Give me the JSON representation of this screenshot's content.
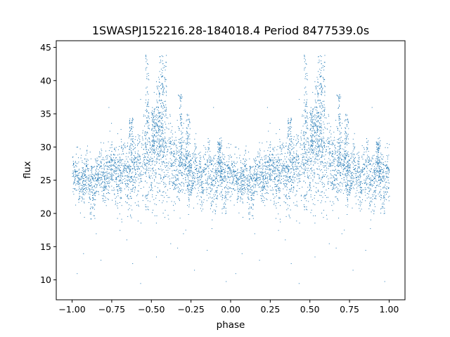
{
  "chart_data": {
    "type": "scatter",
    "title": "1SWASPJ152216.28-184018.4 Period 8477539.0s",
    "xlabel": "phase",
    "ylabel": "flux",
    "xlim": [
      -1.1,
      1.1
    ],
    "ylim": [
      7,
      46
    ],
    "xticks": [
      -1.0,
      -0.75,
      -0.5,
      -0.25,
      0.0,
      0.25,
      0.5,
      0.75,
      1.0
    ],
    "xtick_labels": [
      "−1.00",
      "−0.75",
      "−0.50",
      "−0.25",
      "0.00",
      "0.25",
      "0.50",
      "0.75",
      "1.00"
    ],
    "yticks": [
      10,
      15,
      20,
      25,
      30,
      35,
      40,
      45
    ],
    "ytick_labels": [
      "10",
      "15",
      "20",
      "25",
      "30",
      "35",
      "40",
      "45"
    ],
    "grid": false,
    "marker_color": "#1f77b4",
    "series": [
      {
        "profile": [
          {
            "x": 0.0,
            "y": 25.0,
            "spread": 1.6
          },
          {
            "x": 0.05,
            "y": 25.5,
            "spread": 1.6
          },
          {
            "x": 0.1,
            "y": 24.5,
            "spread": 1.8
          },
          {
            "x": 0.15,
            "y": 25.5,
            "spread": 1.7
          },
          {
            "x": 0.2,
            "y": 26.0,
            "spread": 1.8
          },
          {
            "x": 0.25,
            "y": 26.5,
            "spread": 2.3
          },
          {
            "x": 0.3,
            "y": 26.0,
            "spread": 2.4
          },
          {
            "x": 0.35,
            "y": 26.5,
            "spread": 2.5
          },
          {
            "x": 0.4,
            "y": 26.5,
            "spread": 2.7
          },
          {
            "x": 0.45,
            "y": 28.5,
            "spread": 3.0
          },
          {
            "x": 0.5,
            "y": 28.0,
            "spread": 3.4
          },
          {
            "x": 0.55,
            "y": 30.0,
            "spread": 4.3
          },
          {
            "x": 0.6,
            "y": 28.0,
            "spread": 3.4
          },
          {
            "x": 0.65,
            "y": 27.0,
            "spread": 2.7
          },
          {
            "x": 0.7,
            "y": 27.0,
            "spread": 2.7
          },
          {
            "x": 0.75,
            "y": 26.0,
            "spread": 2.0
          },
          {
            "x": 0.8,
            "y": 26.0,
            "spread": 2.0
          },
          {
            "x": 0.85,
            "y": 25.5,
            "spread": 2.0
          },
          {
            "x": 0.9,
            "y": 26.0,
            "spread": 2.2
          },
          {
            "x": 0.95,
            "y": 26.0,
            "spread": 2.2
          },
          {
            "x": 1.0,
            "y": 26.0,
            "spread": 2.0
          }
        ],
        "spikes": [
          {
            "x": 0.47,
            "y_min": 26,
            "y_max": 44
          },
          {
            "x": 0.56,
            "y_min": 28,
            "y_max": 44
          },
          {
            "x": 0.58,
            "y_min": 30,
            "y_max": 44
          },
          {
            "x": 0.68,
            "y_min": 27,
            "y_max": 38
          },
          {
            "x": 0.51,
            "y_min": 29,
            "y_max": 36
          },
          {
            "x": 0.54,
            "y_min": 28,
            "y_max": 40
          },
          {
            "x": 0.73,
            "y_min": 26,
            "y_max": 35
          },
          {
            "x": 0.37,
            "y_min": 26,
            "y_max": 35
          },
          {
            "x": 0.93,
            "y_min": 25,
            "y_max": 31
          }
        ],
        "dips": [
          {
            "x": 0.12,
            "y": 19.0
          },
          {
            "x": 0.47,
            "y": 20.5
          },
          {
            "x": 0.82,
            "y": 20.5
          },
          {
            "x": 0.96,
            "y": 20.0
          }
        ],
        "outliers": [
          {
            "x": 0.03,
            "y": 11.0
          },
          {
            "x": 0.18,
            "y": 13.0
          },
          {
            "x": 0.3,
            "y": 17.5
          },
          {
            "x": 0.43,
            "y": 9.5
          },
          {
            "x": 0.53,
            "y": 13.5
          },
          {
            "x": 0.7,
            "y": 17.0
          },
          {
            "x": 0.85,
            "y": 14.5
          },
          {
            "x": 0.97,
            "y": 9.8
          },
          {
            "x": 0.23,
            "y": 36.0
          },
          {
            "x": 0.89,
            "y": 36.0
          },
          {
            "x": 0.07,
            "y": 14.0
          },
          {
            "x": 0.62,
            "y": 15.5
          },
          {
            "x": 0.38,
            "y": 12.5
          },
          {
            "x": 0.77,
            "y": 11.5
          },
          {
            "x": 0.15,
            "y": 17.0
          }
        ],
        "periodic": true,
        "points_per_half": 2600
      }
    ]
  }
}
